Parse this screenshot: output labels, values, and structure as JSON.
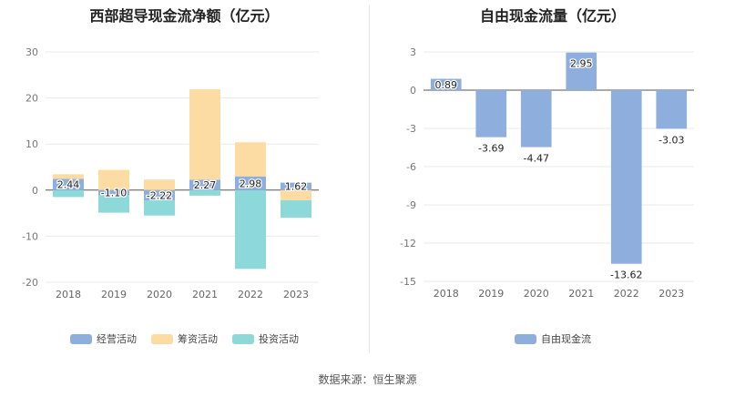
{
  "footer": "数据来源：恒生聚源",
  "chart_data": [
    {
      "type": "bar",
      "stacked": true,
      "title": "西部超导现金流净额（亿元）",
      "categories": [
        "2018",
        "2019",
        "2020",
        "2021",
        "2022",
        "2023"
      ],
      "ylim": [
        -20,
        30
      ],
      "yticks": [
        -20,
        -10,
        0,
        10,
        20,
        30
      ],
      "grid": true,
      "legend_position": "bottom",
      "series": [
        {
          "name": "经营活动",
          "color": "#8eaedd",
          "values": [
            2.44,
            -1.1,
            -2.22,
            2.27,
            2.98,
            1.62
          ]
        },
        {
          "name": "筹资活动",
          "color": "#fddca3",
          "values": [
            1.0,
            4.4,
            2.3,
            19.6,
            7.4,
            -2.2
          ]
        },
        {
          "name": "投资活动",
          "color": "#8dd9da",
          "values": [
            -1.5,
            -3.8,
            -3.3,
            -1.2,
            -17.1,
            -3.8
          ]
        }
      ],
      "data_labels_series": "经营活动"
    },
    {
      "type": "bar",
      "title": "自由现金流量（亿元）",
      "categories": [
        "2018",
        "2019",
        "2020",
        "2021",
        "2022",
        "2023"
      ],
      "ylim": [
        -15,
        3
      ],
      "yticks": [
        -15,
        -12,
        -9,
        -6,
        -3,
        0,
        3
      ],
      "grid": true,
      "legend_position": "bottom",
      "series": [
        {
          "name": "自由现金流",
          "color": "#8eaedd",
          "values": [
            0.89,
            -3.69,
            -4.47,
            2.95,
            -13.62,
            -3.03
          ]
        }
      ]
    }
  ]
}
